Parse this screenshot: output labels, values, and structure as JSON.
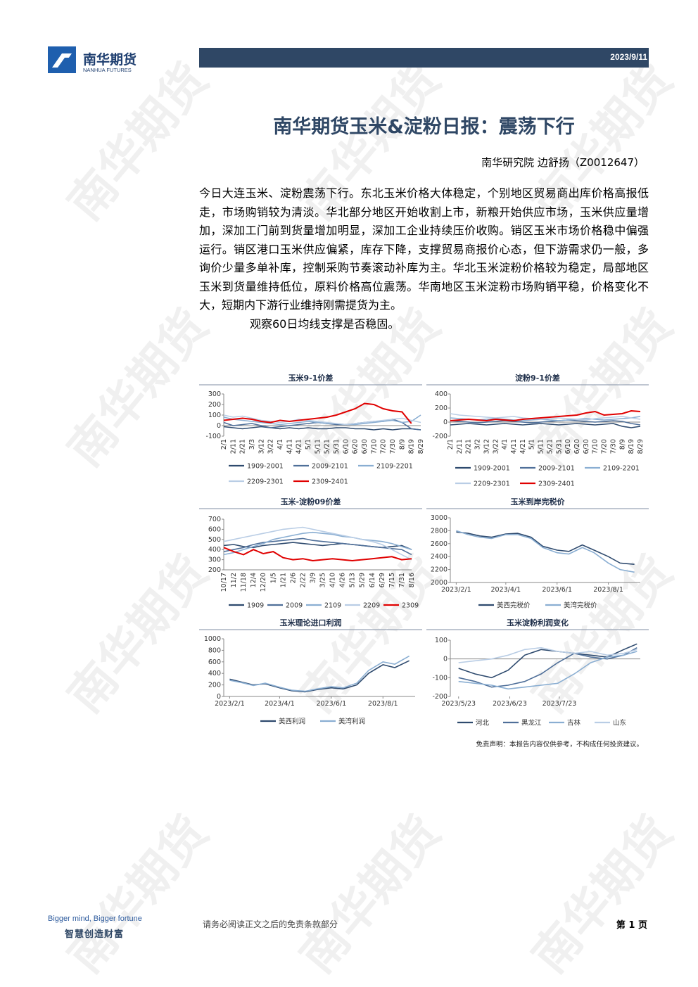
{
  "header": {
    "logo_cn": "南华期货",
    "logo_en": "NANHUA FUTURES",
    "date": "2023/9/11"
  },
  "watermark": "南华期货",
  "title": "南华期货玉米&淀粉日报：震荡下行",
  "author": "南华研究院 边舒扬（Z0012647）",
  "body": [
    "今日大连玉米、淀粉震荡下行。东北玉米价格大体稳定，个别地区贸易商出库价格高报低走，市场购销较为清淡。华北部分地区开始收割上市，新粮开始供应市场，玉米供应量增加，深加工门前到货量增加明显，深加工企业持续压价收购。销区玉米市场价格稳中偏强运行。销区港口玉米供应偏紧，库存下降，支撑贸易商报价心态，但下游需求仍一般，多询价少量多单补库，控制采购节奏滚动补库为主。华北玉米淀粉价格较为稳定，局部地区玉米到货量维持低位，原料价格高位震荡。华南地区玉米淀粉市场购销平稳，价格变化不大，短期内下游行业维持刚需提货为主。",
    "观察60日均线支撑是否稳固。"
  ],
  "charts": [
    {
      "type": "line",
      "title": "玉米9-1价差",
      "categories": [
        "2/1",
        "2/11",
        "2/21",
        "3/3",
        "3/12",
        "3/22",
        "4/1",
        "4/11",
        "4/21",
        "5/1",
        "5/11",
        "5/21",
        "5/31",
        "6/10",
        "6/20",
        "6/30",
        "7/10",
        "7/20",
        "7/30",
        "8/9",
        "8/19",
        "8/29"
      ],
      "ylim": [
        -100,
        300
      ],
      "yticks": [
        -100,
        0,
        100,
        200,
        300
      ],
      "series": [
        {
          "name": "1909-2001",
          "color": "#2e4a6e",
          "values": [
            -10,
            -20,
            -30,
            -20,
            -10,
            -20,
            -30,
            -20,
            -30,
            -20,
            -30,
            -30,
            -20,
            -20,
            -30,
            -30,
            -40,
            -30,
            -40,
            -30,
            -30,
            -40
          ]
        },
        {
          "name": "2009-2101",
          "color": "#4f6f99",
          "values": [
            30,
            0,
            10,
            20,
            0,
            -20,
            -10,
            0,
            10,
            20,
            30,
            20,
            10,
            10,
            20,
            30,
            40,
            40,
            60,
            30,
            -30,
            -40
          ]
        },
        {
          "name": "2109-2201",
          "color": "#8aaed2",
          "values": [
            80,
            60,
            50,
            40,
            30,
            20,
            10,
            20,
            30,
            40,
            30,
            20,
            20,
            10,
            10,
            20,
            30,
            40,
            50,
            30,
            40,
            100
          ]
        },
        {
          "name": "2209-2301",
          "color": "#b9cde5",
          "values": [
            100,
            80,
            90,
            70,
            50,
            40,
            30,
            40,
            60,
            50,
            40,
            30,
            20,
            10,
            20,
            30,
            40,
            50,
            60,
            70,
            50,
            30
          ]
        },
        {
          "name": "2309-2401",
          "color": "#e00000",
          "values": [
            50,
            60,
            70,
            60,
            40,
            30,
            50,
            40,
            50,
            60,
            70,
            80,
            100,
            130,
            160,
            210,
            200,
            160,
            140,
            130,
            20,
            null
          ]
        }
      ]
    },
    {
      "type": "line",
      "title": "淀粉9-1价差",
      "categories": [
        "2/1",
        "2/11",
        "2/21",
        "3/2",
        "3/12",
        "3/22",
        "4/1",
        "4/11",
        "4/21",
        "5/1",
        "5/11",
        "5/21",
        "5/31",
        "6/10",
        "6/20",
        "6/30",
        "7/10",
        "7/20",
        "7/30",
        "8/9",
        "8/19",
        "8/29"
      ],
      "ylim": [
        -200,
        400
      ],
      "yticks": [
        -200,
        0,
        200,
        400
      ],
      "series": [
        {
          "name": "1909-2001",
          "color": "#2e4a6e",
          "values": [
            -40,
            -30,
            -20,
            -30,
            -40,
            -30,
            -20,
            -30,
            -40,
            -30,
            -20,
            -30,
            -40,
            -30,
            -20,
            -30,
            -40,
            -30,
            -20,
            -60,
            -80,
            -60
          ]
        },
        {
          "name": "2009-2101",
          "color": "#4f6f99",
          "values": [
            20,
            10,
            0,
            -10,
            0,
            10,
            20,
            10,
            0,
            -10,
            0,
            10,
            20,
            30,
            20,
            10,
            0,
            10,
            20,
            10,
            -20,
            -40
          ]
        },
        {
          "name": "2109-2201",
          "color": "#8aaed2",
          "values": [
            60,
            50,
            40,
            30,
            40,
            50,
            40,
            30,
            20,
            30,
            40,
            30,
            20,
            30,
            40,
            50,
            40,
            30,
            40,
            50,
            60,
            80
          ]
        },
        {
          "name": "2209-2301",
          "color": "#b9cde5",
          "values": [
            120,
            100,
            90,
            80,
            70,
            60,
            70,
            80,
            60,
            50,
            40,
            50,
            60,
            50,
            40,
            30,
            50,
            60,
            70,
            80,
            60,
            40
          ]
        },
        {
          "name": "2309-2401",
          "color": "#e00000",
          "values": [
            20,
            30,
            40,
            30,
            20,
            40,
            30,
            20,
            40,
            50,
            60,
            70,
            80,
            90,
            100,
            130,
            150,
            100,
            110,
            120,
            160,
            150
          ]
        }
      ]
    },
    {
      "type": "line",
      "title": "玉米-淀粉09价差",
      "categories": [
        "10/17",
        "11/2",
        "11/18",
        "12/4",
        "12/20",
        "1/5",
        "1/21",
        "2/6",
        "2/22",
        "3/9",
        "3/25",
        "4/10",
        "4/26",
        "5/13",
        "5/29",
        "6/14",
        "6/29",
        "7/15",
        "7/31",
        "8/16"
      ],
      "ylim": [
        200,
        700
      ],
      "yticks": [
        200,
        300,
        400,
        500,
        600,
        700
      ],
      "series": [
        {
          "name": "1909",
          "color": "#2e4a6e",
          "values": [
            440,
            450,
            430,
            420,
            440,
            450,
            460,
            470,
            460,
            450,
            440,
            450,
            460,
            450,
            440,
            430,
            420,
            430,
            440,
            400
          ]
        },
        {
          "name": "2009",
          "color": "#4f6f99",
          "values": [
            380,
            400,
            420,
            450,
            470,
            480,
            490,
            500,
            510,
            490,
            480,
            470,
            460,
            450,
            440,
            430,
            420,
            410,
            400,
            350
          ]
        },
        {
          "name": "2109",
          "color": "#8aaed2",
          "values": [
            350,
            370,
            400,
            430,
            460,
            500,
            520,
            540,
            560,
            570,
            560,
            550,
            530,
            520,
            500,
            490,
            480,
            460,
            430,
            400
          ]
        },
        {
          "name": "2209",
          "color": "#b9cde5",
          "values": [
            480,
            500,
            520,
            540,
            560,
            580,
            600,
            610,
            620,
            600,
            580,
            560,
            540,
            520,
            500,
            480,
            450,
            400,
            350,
            300
          ]
        },
        {
          "name": "2309",
          "color": "#e00000",
          "values": [
            420,
            380,
            350,
            400,
            360,
            380,
            320,
            300,
            310,
            290,
            300,
            310,
            300,
            290,
            300,
            310,
            320,
            330,
            300,
            310
          ]
        }
      ]
    },
    {
      "type": "line",
      "title": "玉米到岸完税价",
      "x": [
        "2023/2/1",
        "2023/2/15",
        "2023/3/1",
        "2023/3/15",
        "2023/4/1",
        "2023/4/15",
        "2023/5/1",
        "2023/5/15",
        "2023/6/1",
        "2023/6/15",
        "2023/7/1",
        "2023/7/15",
        "2023/8/1",
        "2023/8/15",
        "2023/9/1"
      ],
      "xlim": [
        "2023/1/25",
        "2023/9/8"
      ],
      "xticks": [
        "2023/2/1",
        "2023/4/1",
        "2023/6/1",
        "2023/8/1"
      ],
      "ylim": [
        2000,
        3000
      ],
      "yticks": [
        2000,
        2200,
        2400,
        2600,
        2800,
        3000
      ],
      "series": [
        {
          "name": "美西完税价",
          "color": "#2e4a6e",
          "values": [
            2780,
            2760,
            2720,
            2700,
            2750,
            2760,
            2700,
            2560,
            2500,
            2480,
            2580,
            2500,
            2400,
            2300,
            2280
          ]
        },
        {
          "name": "美湾完税价",
          "color": "#8aaed2",
          "values": [
            2800,
            2740,
            2700,
            2680,
            2740,
            2740,
            2680,
            2540,
            2460,
            2440,
            2540,
            2460,
            2300,
            2200,
            2160
          ]
        }
      ]
    },
    {
      "type": "line",
      "title": "玉米理论进口利润",
      "x": [
        "2023/2/1",
        "2023/2/15",
        "2023/3/1",
        "2023/3/15",
        "2023/4/1",
        "2023/4/15",
        "2023/5/1",
        "2023/5/15",
        "2023/6/1",
        "2023/6/15",
        "2023/7/1",
        "2023/7/15",
        "2023/8/1",
        "2023/8/15",
        "2023/9/1"
      ],
      "xlim": [
        "2023/1/25",
        "2023/9/8"
      ],
      "xticks": [
        "2023/2/1",
        "2023/4/1",
        "2023/6/1",
        "2023/8/1"
      ],
      "ylim": [
        0,
        1000
      ],
      "yticks": [
        0,
        200,
        400,
        600,
        800,
        1000
      ],
      "series": [
        {
          "name": "美西利润",
          "color": "#2e4a6e",
          "values": [
            300,
            250,
            200,
            220,
            150,
            100,
            80,
            120,
            150,
            130,
            200,
            400,
            550,
            500,
            620
          ]
        },
        {
          "name": "美湾利润",
          "color": "#8aaed2",
          "values": [
            280,
            240,
            190,
            230,
            160,
            110,
            90,
            130,
            170,
            150,
            230,
            450,
            600,
            560,
            700
          ]
        }
      ]
    },
    {
      "type": "line",
      "title": "玉米淀粉利润变化",
      "x": [
        "2023/5/23",
        "2023/6/2",
        "2023/6/12",
        "2023/6/22",
        "2023/7/2",
        "2023/7/12",
        "2023/7/22",
        "2023/8/1",
        "2023/8/11",
        "2023/8/21",
        "2023/8/31",
        "2023/9/8"
      ],
      "xlim": [
        "2023/5/18",
        "2023/9/10"
      ],
      "xticks": [
        "2023/5/23",
        "2023/6/23",
        "2023/7/23"
      ],
      "ylim": [
        -200,
        100
      ],
      "yticks": [
        -200,
        -100,
        0,
        100
      ],
      "series": [
        {
          "name": "河北",
          "color": "#2e4a6e",
          "values": [
            -50,
            -80,
            -100,
            -60,
            20,
            50,
            40,
            30,
            20,
            10,
            50,
            80
          ]
        },
        {
          "name": "黑龙江",
          "color": "#4f6f99",
          "values": [
            -100,
            -120,
            -150,
            -140,
            -120,
            -80,
            -20,
            30,
            10,
            0,
            20,
            60
          ]
        },
        {
          "name": "吉林",
          "color": "#8aaed2",
          "values": [
            -120,
            -130,
            -140,
            -160,
            -150,
            -140,
            -130,
            -80,
            -20,
            10,
            20,
            40
          ]
        },
        {
          "name": "山东",
          "color": "#b9cde5",
          "values": [
            -20,
            -10,
            0,
            20,
            50,
            60,
            40,
            30,
            40,
            20,
            30,
            50
          ]
        }
      ]
    }
  ],
  "disclaimer": "免责声明：本报告内容仅供参考，不构成任何投资建议。",
  "footer": {
    "slogan_en": "Bigger mind, Bigger fortune",
    "slogan_cn": "智慧创造财富",
    "note": "请务必阅读正文之后的免责条款部分",
    "page": "第 1 页"
  }
}
